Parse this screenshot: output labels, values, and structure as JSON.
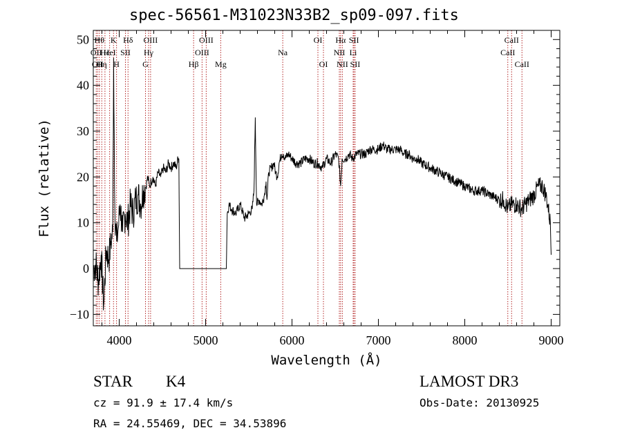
{
  "chart_data": {
    "type": "line",
    "title": "spec-56561-M31023N33B2_sp09-097.fits",
    "xlabel": "Wavelength (Å)",
    "ylabel": "Flux (relative)",
    "xlim": [
      3700,
      9100
    ],
    "ylim": [
      -12.5,
      52
    ],
    "xticks": [
      4000,
      5000,
      6000,
      7000,
      8000,
      9000
    ],
    "yticks": [
      -10,
      0,
      10,
      20,
      30,
      40,
      50
    ],
    "line_color": "#000000",
    "marker_color": "#b22222",
    "series": [
      {
        "x": [
          3700,
          3730,
          3760,
          3790,
          3820,
          3850,
          3880,
          3905,
          3925,
          3935,
          3950,
          3970,
          3990,
          4010,
          4040,
          4070,
          4100,
          4130,
          4160,
          4190,
          4220,
          4250,
          4280,
          4310,
          4330,
          4350,
          4370,
          4390,
          4420,
          4450,
          4480,
          4510,
          4540,
          4570,
          4600,
          4630,
          4660,
          4680,
          4690,
          4700,
          5000,
          5240,
          5250,
          5270,
          5300,
          5350,
          5400,
          5450,
          5500,
          5540,
          5560,
          5575,
          5590,
          5620,
          5650,
          5680,
          5700,
          5710,
          5730,
          5760,
          5790,
          5810,
          5830,
          5850,
          5880,
          5900,
          5920,
          5960,
          6000,
          6050,
          6100,
          6150,
          6200,
          6250,
          6300,
          6350,
          6400,
          6450,
          6500,
          6540,
          6563,
          6580,
          6620,
          6660,
          6700,
          6750,
          6800,
          6850,
          6900,
          6950,
          7000,
          7050,
          7100,
          7150,
          7200,
          7250,
          7300,
          7350,
          7400,
          7450,
          7500,
          7600,
          7700,
          7800,
          7900,
          8000,
          8100,
          8200,
          8300,
          8400,
          8450,
          8498,
          8542,
          8600,
          8662,
          8700,
          8750,
          8800,
          8850,
          8900,
          8940,
          8960,
          8990,
          9000
        ],
        "y": [
          0,
          1,
          -3,
          3,
          -8,
          4,
          2,
          6,
          8,
          46,
          12,
          6,
          9,
          14,
          8,
          12,
          10,
          14,
          12,
          15,
          16,
          14,
          17,
          18,
          20,
          18,
          19,
          20,
          18,
          21,
          20,
          22,
          21,
          23,
          22,
          23,
          22,
          24,
          24,
          0,
          0,
          0,
          12,
          14,
          13,
          12,
          14,
          11,
          12,
          13,
          17,
          33,
          14,
          15,
          14,
          16,
          19,
          15,
          21,
          22,
          23,
          21,
          20,
          23,
          25,
          25,
          24,
          25,
          24,
          23,
          23,
          24,
          24,
          23,
          23,
          22,
          24,
          23,
          25,
          24,
          18,
          24,
          24,
          25,
          24,
          25,
          25,
          25,
          26,
          26,
          26,
          27,
          26,
          26,
          26,
          26,
          25,
          25,
          24,
          24,
          23,
          22,
          21,
          20,
          19,
          18,
          17,
          17,
          16,
          15,
          15,
          13,
          14,
          14,
          13,
          14,
          15,
          16,
          18,
          18,
          16,
          14,
          10,
          3
        ]
      }
    ],
    "lines": [
      {
        "x": 3734,
        "label": "OII",
        "row": 2
      },
      {
        "x": 3750,
        "label": "OII",
        "row": 3
      },
      {
        "x": 3770,
        "label": "Hθ",
        "row": 1
      },
      {
        "x": 3798,
        "label": "Hη",
        "row": 3
      },
      {
        "x": 3835,
        "label": "Hε",
        "row": 2
      },
      {
        "x": 3889,
        "label": "HeI",
        "row": 2
      },
      {
        "x": 3934,
        "label": "K",
        "row": 1
      },
      {
        "x": 3969,
        "label": "H",
        "row": 3
      },
      {
        "x": 4072,
        "label": "SII",
        "row": 2
      },
      {
        "x": 4102,
        "label": "Hδ",
        "row": 1
      },
      {
        "x": 4304,
        "label": "G",
        "row": 3
      },
      {
        "x": 4340,
        "label": "Hγ",
        "row": 2
      },
      {
        "x": 4363,
        "label": "OIII",
        "row": 1
      },
      {
        "x": 4861,
        "label": "Hβ",
        "row": 3
      },
      {
        "x": 4959,
        "label": "OIII",
        "row": 2
      },
      {
        "x": 5007,
        "label": "OIII",
        "row": 1
      },
      {
        "x": 5175,
        "label": "Mg",
        "row": 3
      },
      {
        "x": 5893,
        "label": "Na",
        "row": 2
      },
      {
        "x": 6300,
        "label": "OI",
        "row": 1
      },
      {
        "x": 6364,
        "label": "OI",
        "row": 3
      },
      {
        "x": 6548,
        "label": "NII",
        "row": 2
      },
      {
        "x": 6563,
        "label": "Hα",
        "row": 1
      },
      {
        "x": 6583,
        "label": "NII",
        "row": 3
      },
      {
        "x": 6708,
        "label": "Li",
        "row": 2
      },
      {
        "x": 6717,
        "label": "SII",
        "row": 1
      },
      {
        "x": 6731,
        "label": "SII",
        "row": 3
      },
      {
        "x": 8498,
        "label": "CaII",
        "row": 2
      },
      {
        "x": 8542,
        "label": "CaII",
        "row": 1
      },
      {
        "x": 8662,
        "label": "CaII",
        "row": 3
      }
    ]
  },
  "info": {
    "object_class": "STAR",
    "subclass": "K4",
    "survey": "LAMOST DR3",
    "cz": "cz = 91.9 ± 17.4 km/s",
    "obs_date": "Obs-Date: 20130925",
    "coords": "RA =  24.55469, DEC =  34.53896"
  }
}
